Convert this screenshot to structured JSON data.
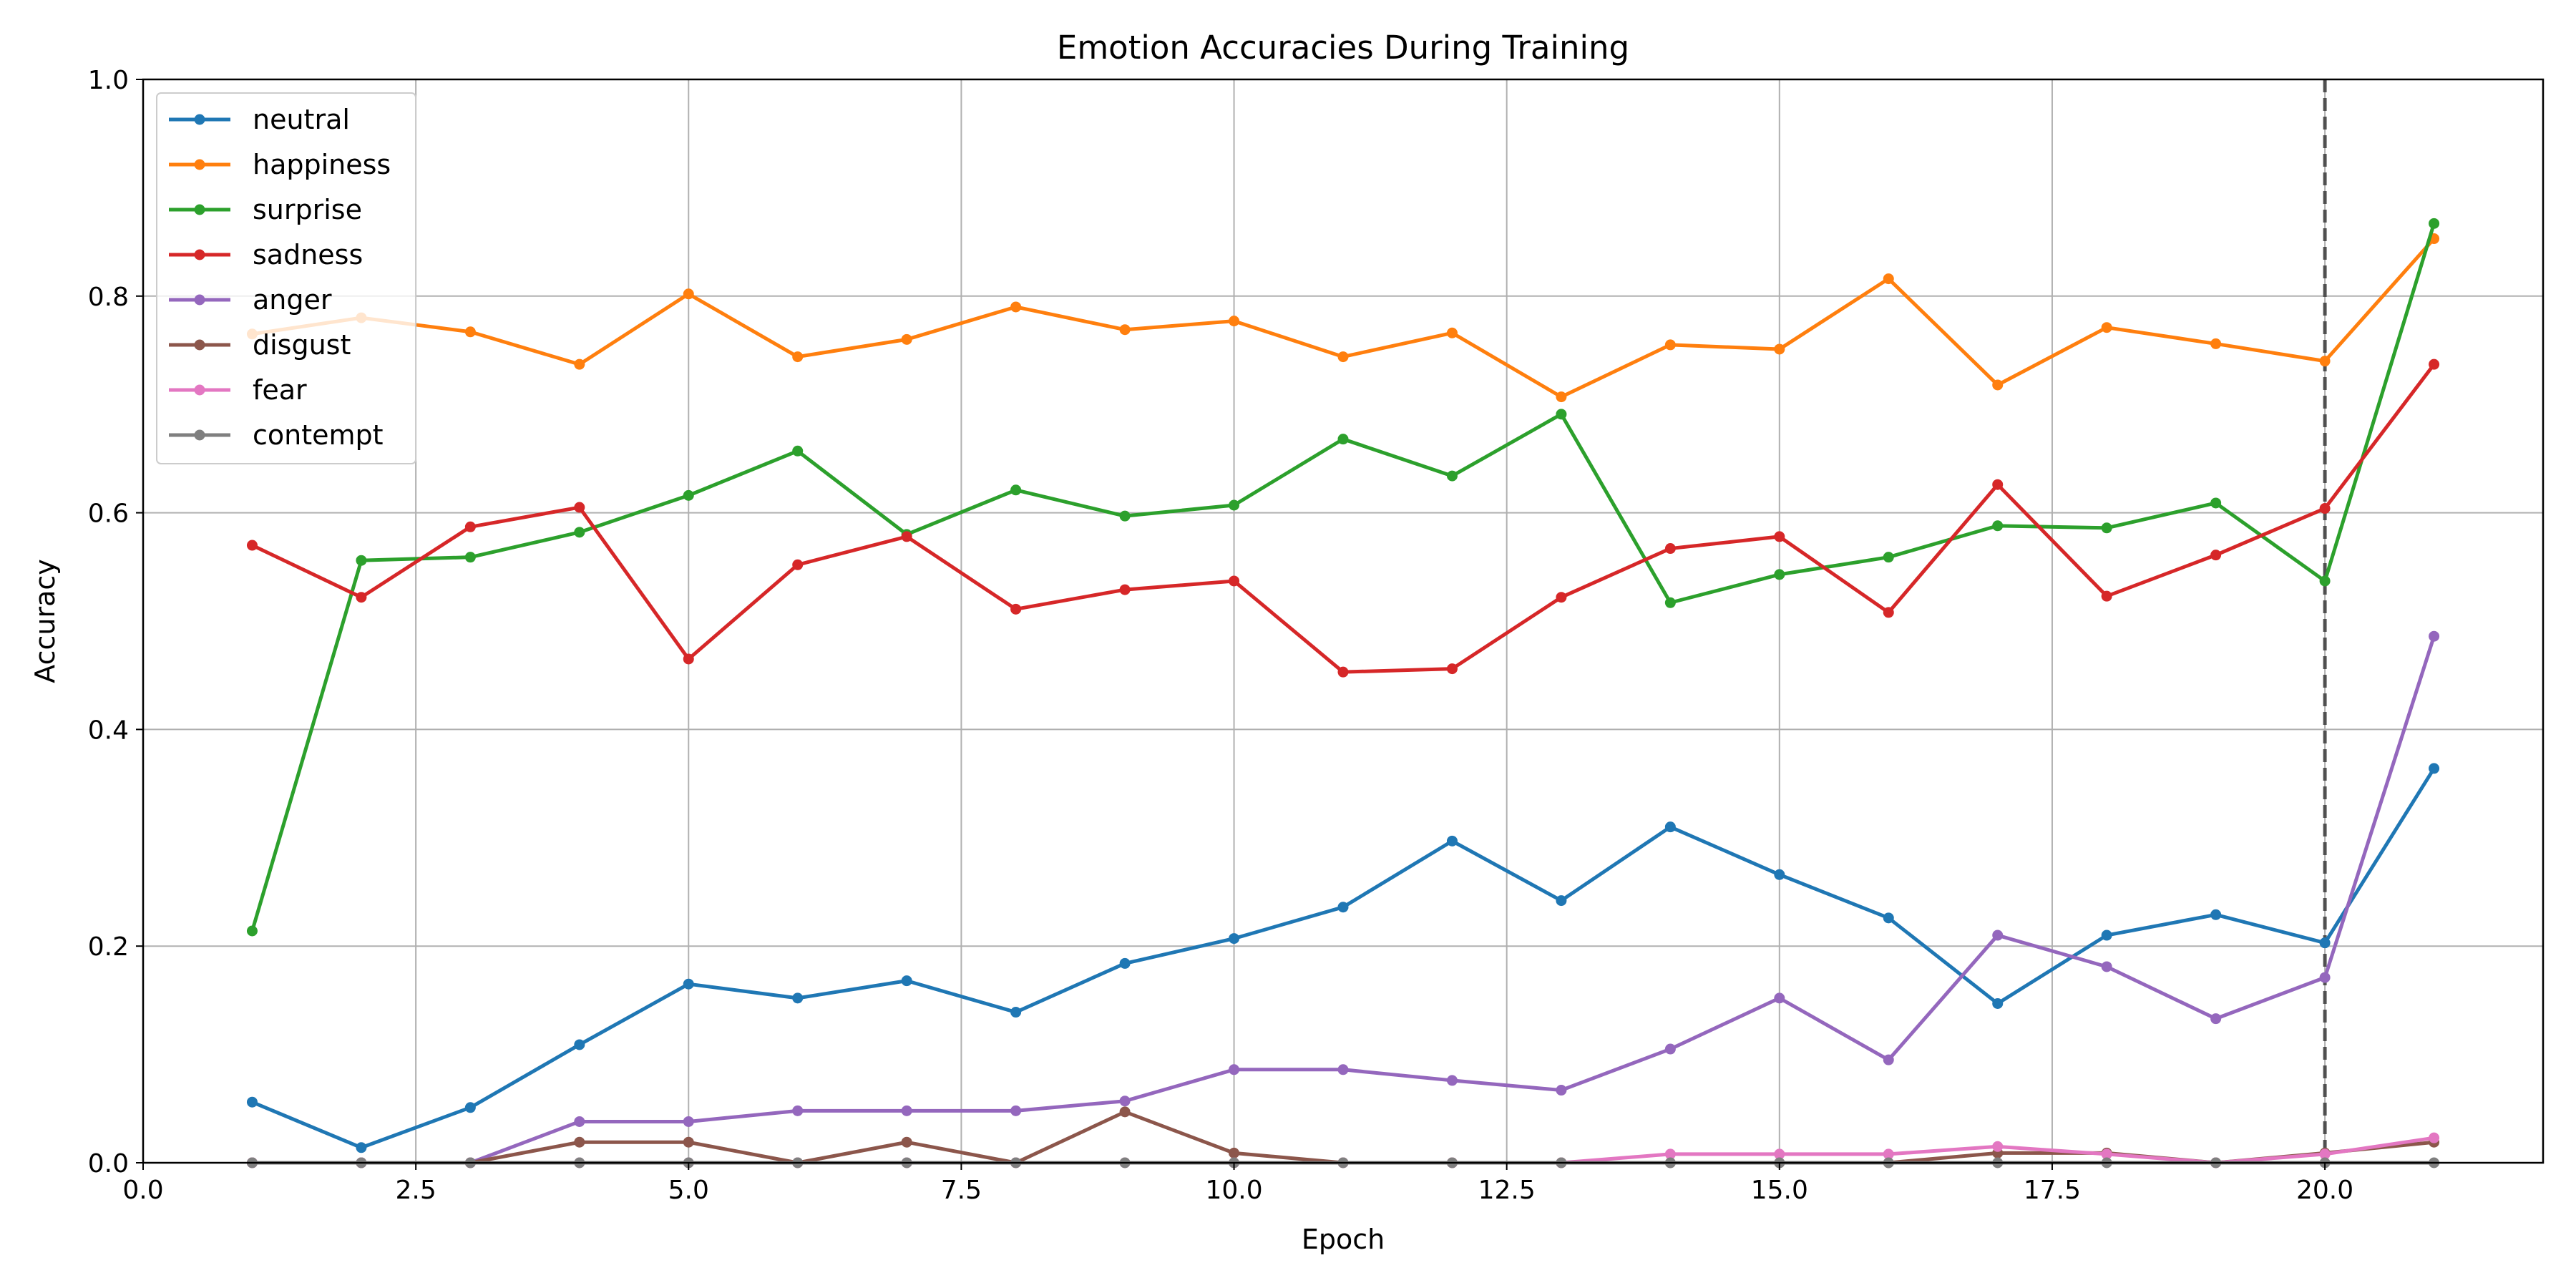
{
  "chart_data": {
    "type": "line",
    "title": "Emotion Accuracies During Training",
    "xlabel": "Epoch",
    "ylabel": "Accuracy",
    "xlim": [
      0,
      22
    ],
    "ylim": [
      0,
      1
    ],
    "xticks": [
      0.0,
      2.5,
      5.0,
      7.5,
      10.0,
      12.5,
      15.0,
      17.5,
      20.0
    ],
    "xtick_labels": [
      "0.0",
      "2.5",
      "5.0",
      "7.5",
      "10.0",
      "12.5",
      "15.0",
      "17.5",
      "20.0"
    ],
    "yticks": [
      0.0,
      0.2,
      0.4,
      0.6,
      0.8,
      1.0
    ],
    "ytick_labels": [
      "0.0",
      "0.2",
      "0.4",
      "0.6",
      "0.8",
      "1.0"
    ],
    "grid": true,
    "legend_position": "top-left",
    "vertical_reference_line": {
      "x": 20,
      "style": "dashed",
      "color": "#444444"
    },
    "x": [
      1,
      2,
      3,
      4,
      5,
      6,
      7,
      8,
      9,
      10,
      11,
      12,
      13,
      14,
      15,
      16,
      17,
      18,
      19,
      20,
      21
    ],
    "series": [
      {
        "name": "neutral",
        "color": "#1f77b4",
        "values": [
          0.056,
          0.014,
          0.051,
          0.109,
          0.165,
          0.152,
          0.168,
          0.139,
          0.184,
          0.207,
          0.236,
          0.297,
          0.242,
          0.31,
          0.266,
          0.226,
          0.147,
          0.21,
          0.229,
          0.203,
          0.364
        ]
      },
      {
        "name": "happiness",
        "color": "#ff7f0e",
        "values": [
          0.765,
          0.78,
          0.767,
          0.737,
          0.802,
          0.744,
          0.76,
          0.79,
          0.769,
          0.777,
          0.744,
          0.766,
          0.707,
          0.755,
          0.751,
          0.816,
          0.718,
          0.771,
          0.756,
          0.74,
          0.853
        ]
      },
      {
        "name": "surprise",
        "color": "#2ca02c",
        "values": [
          0.214,
          0.556,
          0.559,
          0.582,
          0.616,
          0.657,
          0.58,
          0.621,
          0.597,
          0.607,
          0.668,
          0.634,
          0.691,
          0.517,
          0.543,
          0.559,
          0.588,
          0.586,
          0.609,
          0.537,
          0.867
        ]
      },
      {
        "name": "sadness",
        "color": "#d62728",
        "values": [
          0.57,
          0.522,
          0.587,
          0.605,
          0.465,
          0.552,
          0.578,
          0.511,
          0.529,
          0.537,
          0.453,
          0.456,
          0.522,
          0.567,
          0.578,
          0.508,
          0.626,
          0.523,
          0.561,
          0.604,
          0.737
        ]
      },
      {
        "name": "anger",
        "color": "#9467bd",
        "values": [
          0.0,
          0.0,
          0.0,
          0.038,
          0.038,
          0.048,
          0.048,
          0.048,
          0.057,
          0.086,
          0.086,
          0.076,
          0.067,
          0.105,
          0.152,
          0.095,
          0.21,
          0.181,
          0.133,
          0.171,
          0.486
        ]
      },
      {
        "name": "disgust",
        "color": "#8c564b",
        "values": [
          0.0,
          0.0,
          0.0,
          0.019,
          0.019,
          0.0,
          0.019,
          0.0,
          0.047,
          0.009,
          0.0,
          0.0,
          0.0,
          0.0,
          0.0,
          0.0,
          0.009,
          0.009,
          0.0,
          0.009,
          0.019
        ]
      },
      {
        "name": "fear",
        "color": "#e377c2",
        "values": [
          0.0,
          0.0,
          0.0,
          0.0,
          0.0,
          0.0,
          0.0,
          0.0,
          0.0,
          0.0,
          0.0,
          0.0,
          0.0,
          0.008,
          0.008,
          0.008,
          0.015,
          0.008,
          0.0,
          0.008,
          0.023
        ]
      },
      {
        "name": "contempt",
        "color": "#7f7f7f",
        "values": [
          0.0,
          0.0,
          0.0,
          0.0,
          0.0,
          0.0,
          0.0,
          0.0,
          0.0,
          0.0,
          0.0,
          0.0,
          0.0,
          0.0,
          0.0,
          0.0,
          0.0,
          0.0,
          0.0,
          0.0,
          0.0
        ]
      }
    ]
  }
}
